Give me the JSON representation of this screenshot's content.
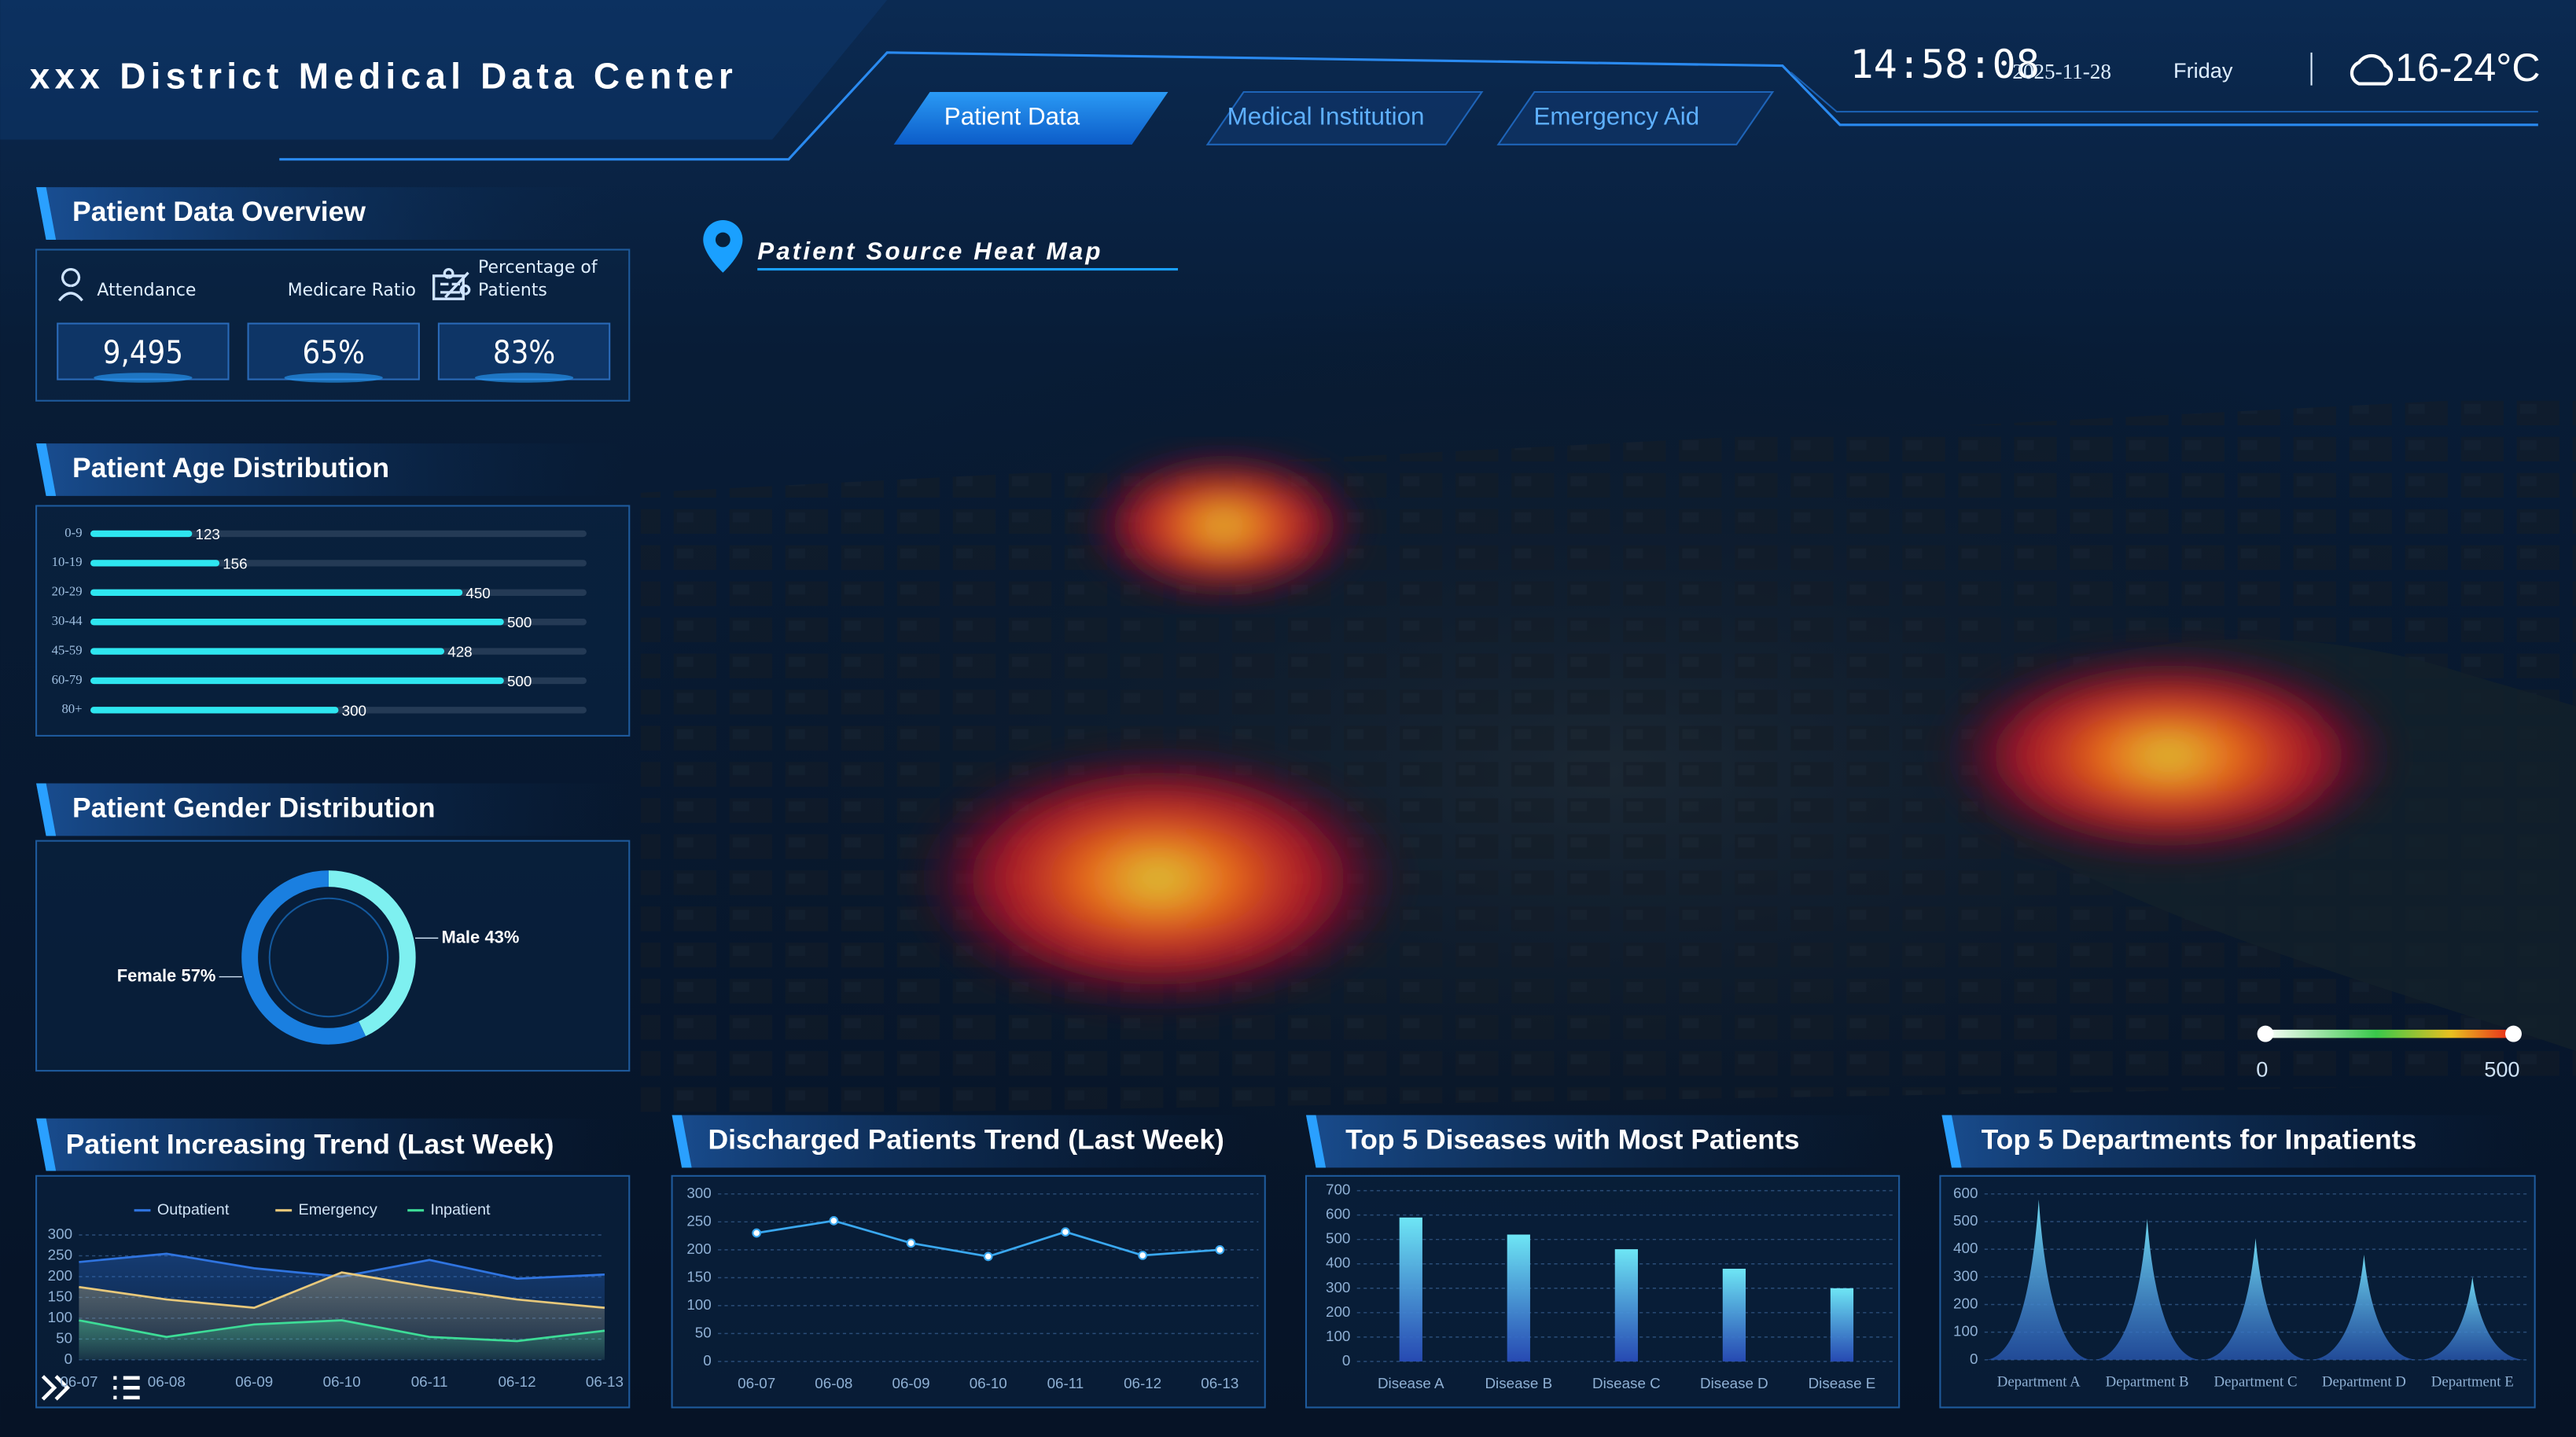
{
  "header": {
    "title": "xxx District Medical Data Center",
    "tabs": [
      "Patient Data",
      "Medical Institution",
      "Emergency Aid"
    ],
    "active_tab": 0,
    "time": "14:58:08",
    "date": "2025-11-28",
    "day": "Friday",
    "temperature": "16-24°C"
  },
  "overview": {
    "title": "Patient Data Overview",
    "items": [
      {
        "label": "Attendance",
        "value": "9,495"
      },
      {
        "label": "Medicare Ratio",
        "value": "65%"
      },
      {
        "label": "Percentage of Patients",
        "value": "83%"
      }
    ]
  },
  "heatmap": {
    "title": "Patient Source Heat Map",
    "scale": [
      0,
      500
    ]
  },
  "chart_data": [
    {
      "type": "bar",
      "horizontal": true,
      "title": "Patient Age Distribution",
      "categories": [
        "0-9",
        "10-19",
        "20-29",
        "30-44",
        "45-59",
        "60-79",
        "80+"
      ],
      "values": [
        123,
        156,
        450,
        500,
        428,
        500,
        300
      ],
      "color": "#2ee6f0",
      "xlim": [
        0,
        600
      ]
    },
    {
      "type": "pie",
      "donut": true,
      "title": "Patient Gender Distribution",
      "categories": [
        "Male",
        "Female"
      ],
      "values": [
        43,
        57
      ],
      "value_labels": [
        "43%",
        "57%"
      ],
      "colors": [
        "#7ef0f0",
        "#1a7fe0"
      ]
    },
    {
      "type": "line",
      "title": "Patient Increasing Trend (Last Week)",
      "area": true,
      "legend": "top",
      "grid": true,
      "categories": [
        "06-07",
        "06-08",
        "06-09",
        "06-10",
        "06-11",
        "06-12",
        "06-13"
      ],
      "series": [
        {
          "name": "Outpatient",
          "color": "#2f74e0",
          "values": [
            235,
            255,
            220,
            200,
            240,
            195,
            205
          ]
        },
        {
          "name": "Emergency",
          "color": "#e8c87a",
          "values": [
            175,
            145,
            125,
            210,
            175,
            145,
            125
          ]
        },
        {
          "name": "Inpatient",
          "color": "#3ddc97",
          "values": [
            95,
            55,
            85,
            95,
            55,
            45,
            70
          ]
        }
      ],
      "ylim": [
        0,
        300
      ],
      "yticks": [
        0,
        50,
        100,
        150,
        200,
        250,
        300
      ]
    },
    {
      "type": "line",
      "title": "Discharged Patients Trend (Last Week)",
      "markers": true,
      "grid": true,
      "categories": [
        "06-07",
        "06-08",
        "06-09",
        "06-10",
        "06-11",
        "06-12",
        "06-13"
      ],
      "values": [
        230,
        252,
        212,
        188,
        232,
        190,
        200
      ],
      "color": "#3aa8f0",
      "ylim": [
        0,
        300
      ],
      "yticks": [
        0,
        50,
        100,
        150,
        200,
        250,
        300
      ]
    },
    {
      "type": "bar",
      "title": "Top 5 Diseases with Most Patients",
      "grid": true,
      "categories": [
        "Disease A",
        "Disease B",
        "Disease C",
        "Disease D",
        "Disease E"
      ],
      "values": [
        590,
        520,
        460,
        380,
        300
      ],
      "color": "#6ee6f5",
      "ylim": [
        0,
        700
      ],
      "yticks": [
        0,
        100,
        200,
        300,
        400,
        500,
        600,
        700
      ]
    },
    {
      "type": "peak",
      "title": "Top 5 Departments for Inpatients",
      "grid": true,
      "categories": [
        "Department A",
        "Department B",
        "Department C",
        "Department D",
        "Department E"
      ],
      "values": [
        580,
        510,
        440,
        380,
        300
      ],
      "color": "#6fd8f0",
      "ylim": [
        0,
        600
      ],
      "yticks": [
        0,
        100,
        200,
        300,
        400,
        500,
        600
      ]
    }
  ]
}
